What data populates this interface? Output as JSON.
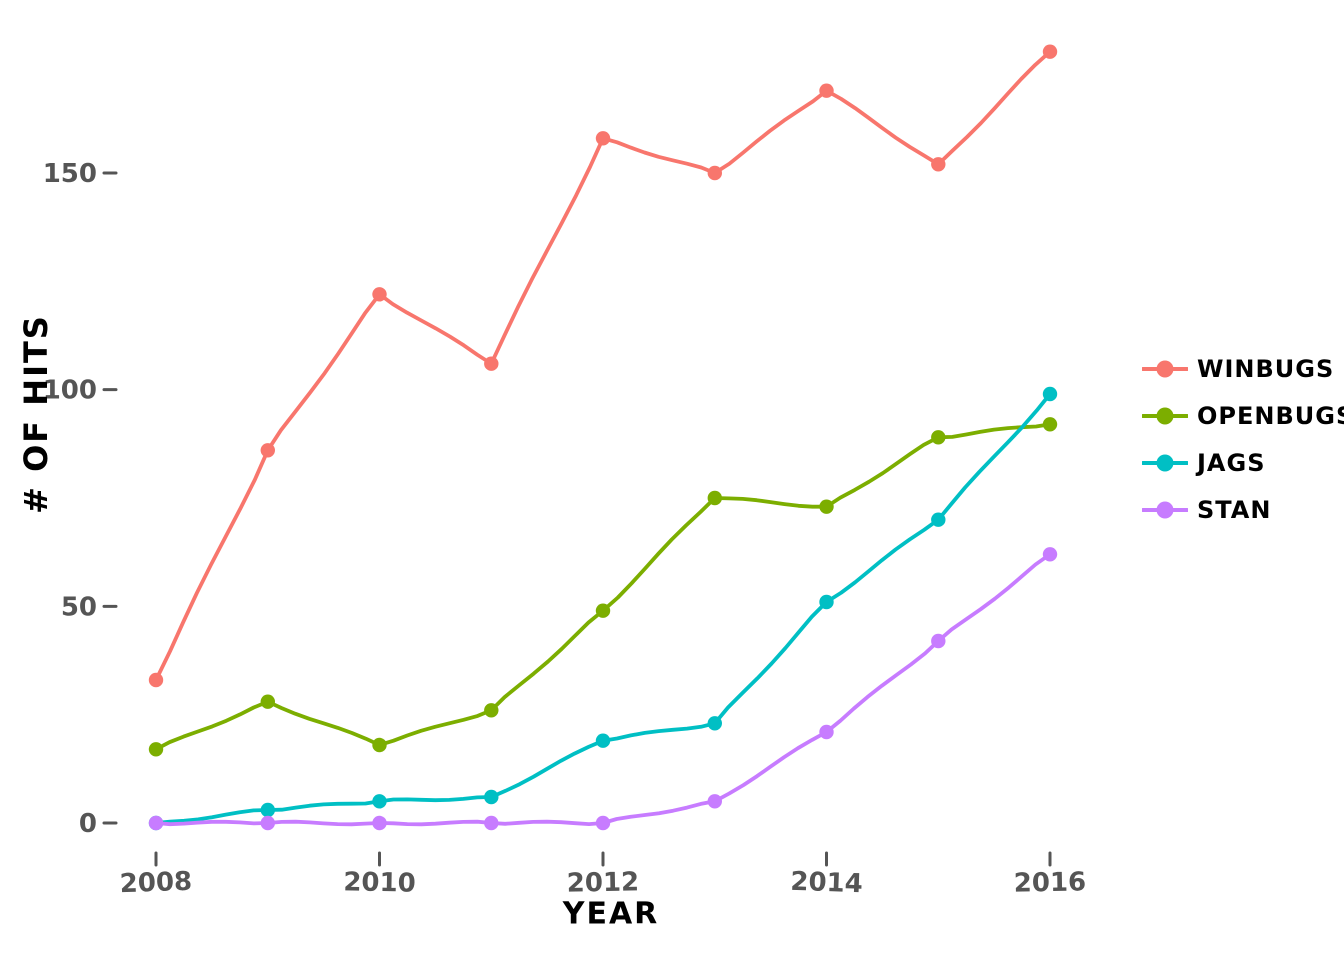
{
  "chart_data": {
    "type": "line",
    "title": "",
    "xlabel": "YEAR",
    "ylabel": "# OF HITS",
    "x": [
      2008,
      2009,
      2010,
      2011,
      2012,
      2013,
      2014,
      2015,
      2016
    ],
    "x_ticks": [
      2008,
      2010,
      2012,
      2014,
      2016
    ],
    "x_tick_labels": [
      "2008",
      "2010",
      "2012",
      "2014",
      "2016"
    ],
    "y_ticks": [
      0,
      50,
      100,
      150
    ],
    "y_tick_labels": [
      "0",
      "50",
      "100",
      "150"
    ],
    "xlim": [
      2008,
      2016
    ],
    "ylim": [
      0,
      185
    ],
    "grid": false,
    "legend_position": "right-center",
    "style": "xkcd-hand-drawn",
    "series": [
      {
        "name": "WINBUGS",
        "color": "#F8766D",
        "values": [
          33,
          86,
          122,
          106,
          158,
          150,
          169,
          152,
          178
        ]
      },
      {
        "name": "OPENBUGS",
        "color": "#7CAE00",
        "values": [
          17,
          28,
          18,
          26,
          49,
          75,
          73,
          89,
          92
        ]
      },
      {
        "name": "JAGS",
        "color": "#00BFC4",
        "values": [
          0,
          3,
          5,
          6,
          19,
          23,
          51,
          70,
          99
        ]
      },
      {
        "name": "STAN",
        "color": "#C77CFF",
        "values": [
          0,
          0,
          0,
          0,
          0,
          5,
          21,
          42,
          62
        ]
      }
    ],
    "colors": {
      "background": "#FFFFFF",
      "tick_label": "#555555",
      "axis_title": "#000000",
      "legend_text": "#000000"
    }
  }
}
